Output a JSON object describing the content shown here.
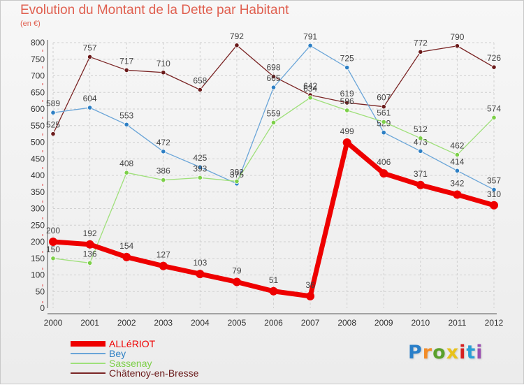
{
  "title": "Evolution du Montant de la Dette par Habitant",
  "unit": "(en €)",
  "brand": {
    "text": "Proxiti",
    "letter_colors": [
      "#2a7fc9",
      "#f28c28",
      "#5aa02c",
      "#e8c21c",
      "#d62020",
      "#2a9fd6",
      "#9a4fb0"
    ]
  },
  "chart_data": {
    "type": "line",
    "x": [
      2000,
      2001,
      2002,
      2003,
      2004,
      2005,
      2006,
      2007,
      2008,
      2009,
      2010,
      2011,
      2012
    ],
    "ylim": [
      0,
      800
    ],
    "yticks": [
      0,
      50,
      100,
      150,
      200,
      250,
      300,
      350,
      400,
      450,
      500,
      550,
      600,
      650,
      700,
      750,
      800
    ],
    "grid": true,
    "legend_position": "bottom-left",
    "series": [
      {
        "name": "Châtenoy-en-Bresse",
        "color": "#7a2424",
        "marker": "#6a1a1a",
        "width": 1.3,
        "values": [
          525,
          757,
          717,
          710,
          658,
          792,
          698,
          642,
          619,
          607,
          772,
          790,
          726
        ]
      },
      {
        "name": "Bey",
        "color": "#6aa5d8",
        "marker": "#2d7fc4",
        "width": 1.3,
        "values": [
          589,
          604,
          553,
          472,
          425,
          375,
          665,
          791,
          725,
          529,
          473,
          414,
          357
        ]
      },
      {
        "name": "Sassenay",
        "color": "#9fe07a",
        "marker": "#7ccf48",
        "width": 1.3,
        "values": [
          150,
          136,
          408,
          386,
          393,
          382,
          559,
          634,
          596,
          561,
          512,
          462,
          574
        ]
      },
      {
        "name": "ALLéRIOT",
        "color": "#ee0000",
        "marker": "#ee0000",
        "width": 7,
        "values": [
          200,
          192,
          154,
          127,
          103,
          79,
          51,
          36,
          499,
          406,
          371,
          342,
          310
        ]
      }
    ],
    "legend_order": [
      "ALLéRIOT",
      "Bey",
      "Sassenay",
      "Châtenoy-en-Bresse"
    ]
  }
}
